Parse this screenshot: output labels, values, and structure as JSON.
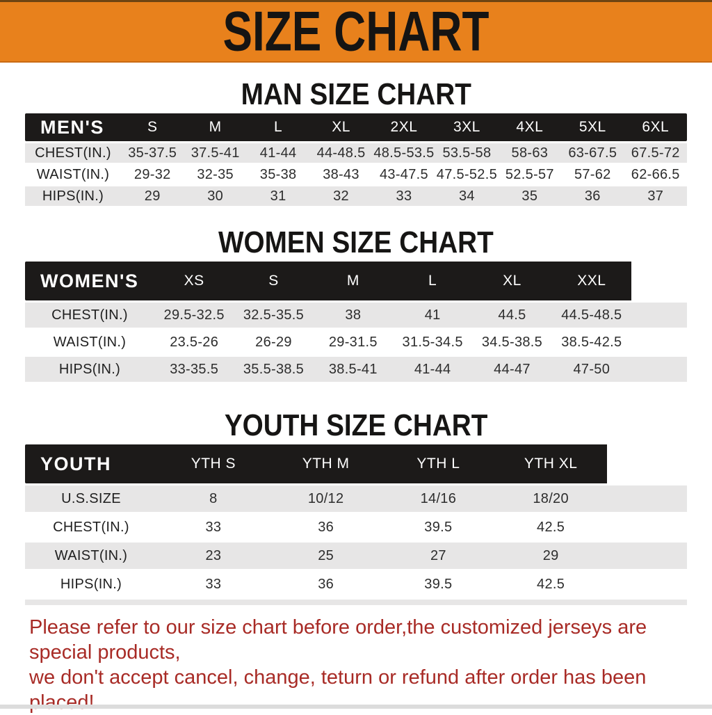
{
  "banner": {
    "title": "SIZE CHART"
  },
  "sections": [
    {
      "heading": "MAN SIZE CHART",
      "table": {
        "group_label": "MEN'S",
        "columns": [
          "S",
          "M",
          "L",
          "XL",
          "2XL",
          "3XL",
          "4XL",
          "5XL",
          "6XL"
        ],
        "rows": [
          {
            "label": "CHEST(IN.)",
            "values": [
              "35-37.5",
              "37.5-41",
              "41-44",
              "44-48.5",
              "48.5-53.5",
              "53.5-58",
              "58-63",
              "63-67.5",
              "67.5-72"
            ]
          },
          {
            "label": "WAIST(IN.)",
            "values": [
              "29-32",
              "32-35",
              "35-38",
              "38-43",
              "43-47.5",
              "47.5-52.5",
              "52.5-57",
              "57-62",
              "62-66.5"
            ]
          },
          {
            "label": "HIPS(IN.)",
            "values": [
              "29",
              "30",
              "31",
              "32",
              "33",
              "34",
              "35",
              "36",
              "37"
            ]
          }
        ]
      }
    },
    {
      "heading": "WOMEN SIZE CHART",
      "table": {
        "group_label": "WOMEN'S",
        "columns": [
          "XS",
          "S",
          "M",
          "L",
          "XL",
          "XXL"
        ],
        "rows": [
          {
            "label": "CHEST(IN.)",
            "values": [
              "29.5-32.5",
              "32.5-35.5",
              "38",
              "41",
              "44.5",
              "44.5-48.5"
            ]
          },
          {
            "label": "WAIST(IN.)",
            "values": [
              "23.5-26",
              "26-29",
              "29-31.5",
              "31.5-34.5",
              "34.5-38.5",
              "38.5-42.5"
            ]
          },
          {
            "label": "HIPS(IN.)",
            "values": [
              "33-35.5",
              "35.5-38.5",
              "38.5-41",
              "41-44",
              "44-47",
              "47-50"
            ]
          }
        ]
      }
    },
    {
      "heading": "YOUTH SIZE CHART",
      "table": {
        "group_label": "YOUTH",
        "columns": [
          "YTH S",
          "YTH M",
          "YTH L",
          "YTH XL"
        ],
        "rows": [
          {
            "label": "U.S.SIZE",
            "values": [
              "8",
              "10/12",
              "14/16",
              "18/20"
            ]
          },
          {
            "label": "CHEST(IN.)",
            "values": [
              "33",
              "36",
              "39.5",
              "42.5"
            ]
          },
          {
            "label": "WAIST(IN.)",
            "values": [
              "23",
              "25",
              "27",
              "29"
            ]
          },
          {
            "label": "HIPS(IN.)",
            "values": [
              "33",
              "36",
              "39.5",
              "42.5"
            ]
          }
        ]
      }
    }
  ],
  "disclaimer": {
    "line1": "Please refer to our size chart before order,the customized jerseys are special products,",
    "line2": "we don't accept cancel, change, teturn or refund after order has been placed!"
  },
  "colors": {
    "banner_orange": "#E8811C",
    "table_header_black": "#1C1A19",
    "row_gray": "#E7E6E6",
    "disclaimer_red": "#A82B26"
  }
}
